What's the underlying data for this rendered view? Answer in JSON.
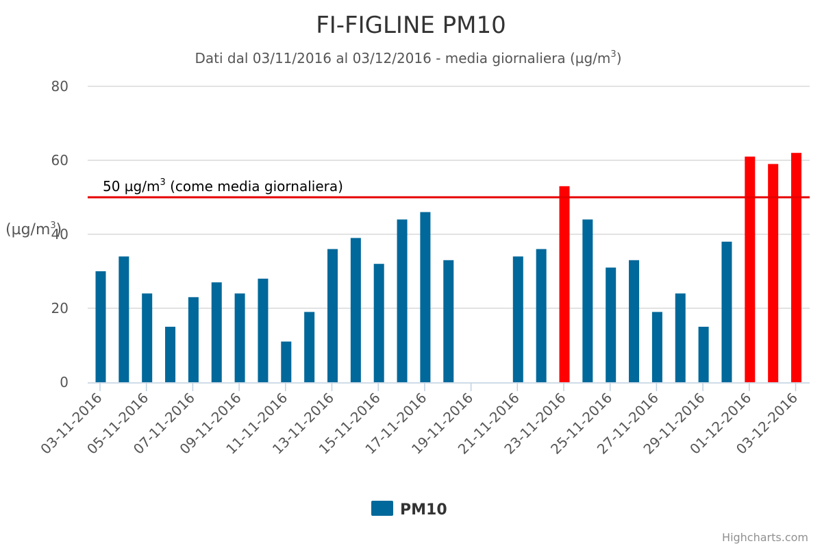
{
  "chart_data": {
    "type": "bar",
    "title": "FI-FIGLINE PM10",
    "subtitle": "Dati dal 03/11/2016 al 03/12/2016 - media giornaliera (µg/m",
    "subtitle_sup": "3",
    "subtitle_end": ")",
    "ylabel": "(µg/m",
    "ylabel_sup": "3",
    "ylabel_end": ")",
    "ylim": [
      0,
      80
    ],
    "yticks": [
      0,
      20,
      40,
      60,
      80
    ],
    "grid": true,
    "legend_placement": "bottom-center",
    "threshold": {
      "value": 50,
      "label": "50 µg/m",
      "label_sup": "3",
      "label_end": " (come media giornaliera)",
      "color": "#e60000"
    },
    "colors": {
      "normal": "#00689a",
      "exceed": "#ff0000",
      "grid": "#d8d8d8",
      "axis": "#c0d0e0"
    },
    "categories": [
      "03-11-2016",
      "04-11-2016",
      "05-11-2016",
      "06-11-2016",
      "07-11-2016",
      "08-11-2016",
      "09-11-2016",
      "10-11-2016",
      "11-11-2016",
      "12-11-2016",
      "13-11-2016",
      "14-11-2016",
      "15-11-2016",
      "16-11-2016",
      "17-11-2016",
      "18-11-2016",
      "19-11-2016",
      "20-11-2016",
      "21-11-2016",
      "22-11-2016",
      "23-11-2016",
      "24-11-2016",
      "25-11-2016",
      "26-11-2016",
      "27-11-2016",
      "28-11-2016",
      "29-11-2016",
      "30-11-2016",
      "01-12-2016",
      "02-12-2016",
      "03-12-2016"
    ],
    "series": [
      {
        "name": "PM10",
        "values": [
          30,
          34,
          24,
          15,
          23,
          27,
          24,
          28,
          11,
          19,
          36,
          39,
          32,
          44,
          46,
          33,
          null,
          null,
          34,
          36,
          53,
          44,
          31,
          33,
          19,
          24,
          15,
          38,
          61,
          59,
          62
        ]
      }
    ]
  },
  "credits": "Highcharts.com"
}
